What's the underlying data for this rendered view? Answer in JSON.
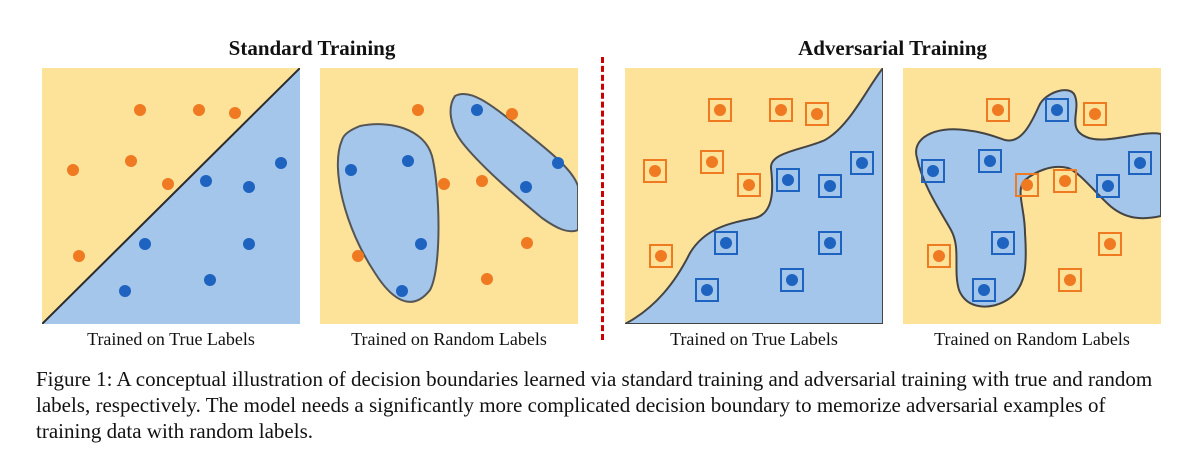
{
  "headings": {
    "standard": "Standard Training",
    "adversarial": "Adversarial Training"
  },
  "panels": {
    "std_true": "Trained on True Labels",
    "std_random": "Trained on Random Labels",
    "adv_true": "Trained on True Labels",
    "adv_random": "Trained on Random Labels"
  },
  "caption": "Figure 1: A conceptual illustration of decision boundaries learned via standard training and adversarial training with true and random labels, respectively. The model needs a significantly more complicated decision boundary to memorize adversarial examples of training data with random labels.",
  "colors": {
    "background_region": "#fde29a",
    "boundary_region": "#a3c6ea",
    "orange_point": "#ef7a22",
    "blue_point": "#1d63bf",
    "divider": "#cc0000"
  }
}
